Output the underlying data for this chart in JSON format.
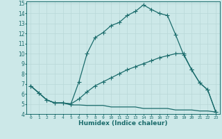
{
  "title": "",
  "xlabel": "Humidex (Indice chaleur)",
  "bg_color": "#cce8e8",
  "line_color": "#1a6b6b",
  "grid_color": "#b8d8d8",
  "xlim": [
    -0.5,
    23.5
  ],
  "ylim": [
    4,
    15.2
  ],
  "xticks": [
    0,
    1,
    2,
    3,
    4,
    5,
    6,
    7,
    8,
    9,
    10,
    11,
    12,
    13,
    14,
    15,
    16,
    17,
    18,
    19,
    20,
    21,
    22,
    23
  ],
  "yticks": [
    4,
    5,
    6,
    7,
    8,
    9,
    10,
    11,
    12,
    13,
    14,
    15
  ],
  "line1_x": [
    0,
    1,
    2,
    3,
    4,
    5,
    6,
    7,
    8,
    9,
    10,
    11,
    12,
    13,
    14,
    15,
    16,
    17,
    18,
    19,
    20,
    21,
    22,
    23
  ],
  "line1_y": [
    6.8,
    6.1,
    5.4,
    5.1,
    5.1,
    5.0,
    7.2,
    10.0,
    11.6,
    12.1,
    12.8,
    13.1,
    13.8,
    14.2,
    14.85,
    14.4,
    14.0,
    13.8,
    11.9,
    9.9,
    8.4,
    7.1,
    6.4,
    4.2
  ],
  "line2_x": [
    0,
    1,
    2,
    3,
    4,
    5,
    6,
    7,
    8,
    9,
    10,
    11,
    12,
    13,
    14,
    15,
    16,
    17,
    18,
    19,
    20,
    21,
    22,
    23
  ],
  "line2_y": [
    6.8,
    6.1,
    5.4,
    5.1,
    5.1,
    5.0,
    5.5,
    6.2,
    6.8,
    7.2,
    7.6,
    8.0,
    8.4,
    8.7,
    9.0,
    9.3,
    9.6,
    9.8,
    10.0,
    10.0,
    8.4,
    7.1,
    6.4,
    4.2
  ],
  "line3_x": [
    0,
    1,
    2,
    3,
    4,
    5,
    6,
    7,
    8,
    9,
    10,
    11,
    12,
    13,
    14,
    15,
    16,
    17,
    18,
    19,
    20,
    21,
    22,
    23
  ],
  "line3_y": [
    6.8,
    6.1,
    5.4,
    5.1,
    5.1,
    4.9,
    4.9,
    4.85,
    4.85,
    4.85,
    4.7,
    4.7,
    4.7,
    4.7,
    4.55,
    4.55,
    4.55,
    4.55,
    4.4,
    4.4,
    4.4,
    4.3,
    4.3,
    4.2
  ]
}
